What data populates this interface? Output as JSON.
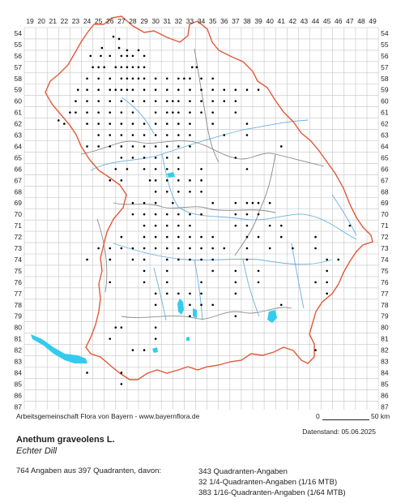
{
  "grid": {
    "x_labels": [
      "19",
      "20",
      "21",
      "22",
      "23",
      "24",
      "25",
      "26",
      "27",
      "28",
      "29",
      "30",
      "31",
      "32",
      "33",
      "34",
      "35",
      "36",
      "37",
      "38",
      "39",
      "40",
      "41",
      "42",
      "43",
      "44",
      "45",
      "46",
      "47",
      "48",
      "49"
    ],
    "y_labels": [
      "54",
      "55",
      "56",
      "57",
      "58",
      "59",
      "60",
      "61",
      "62",
      "63",
      "64",
      "65",
      "66",
      "67",
      "68",
      "69",
      "70",
      "71",
      "72",
      "73",
      "74",
      "75",
      "76",
      "77",
      "78",
      "79",
      "80",
      "81",
      "82",
      "83",
      "84",
      "85",
      "86",
      "87"
    ]
  },
  "colors": {
    "grid": "#bbbbbb",
    "border": "#e05a3a",
    "districts": "#888888",
    "rivers": "#6ab0e0",
    "lakes": "#33ccee",
    "dots": "#000000"
  },
  "occurrences": [
    [
      26.3,
      54.3
    ],
    [
      26.8,
      54.5
    ],
    [
      25.3,
      55.3
    ],
    [
      26.8,
      55.3
    ],
    [
      27.5,
      55.5
    ],
    [
      28.5,
      55.5
    ],
    [
      24.3,
      56.0
    ],
    [
      25.2,
      56.0
    ],
    [
      26.0,
      56.0
    ],
    [
      27.0,
      56.0
    ],
    [
      27.5,
      56.0
    ],
    [
      28.0,
      56.0
    ],
    [
      29.0,
      56.0
    ],
    [
      24.5,
      57.0
    ],
    [
      25.0,
      57.0
    ],
    [
      25.5,
      57.0
    ],
    [
      26.5,
      57.0
    ],
    [
      27.0,
      57.0
    ],
    [
      27.5,
      57.0
    ],
    [
      28.0,
      57.0
    ],
    [
      28.5,
      57.0
    ],
    [
      29.0,
      57.0
    ],
    [
      33.2,
      57.0
    ],
    [
      33.6,
      57.0
    ],
    [
      24.0,
      58.0
    ],
    [
      25.0,
      58.0
    ],
    [
      26.0,
      58.0
    ],
    [
      27.0,
      58.0
    ],
    [
      27.5,
      58.0
    ],
    [
      28.0,
      58.0
    ],
    [
      28.5,
      58.0
    ],
    [
      29.0,
      58.0
    ],
    [
      30.0,
      58.0
    ],
    [
      31.0,
      58.0
    ],
    [
      32.0,
      58.0
    ],
    [
      32.5,
      58.0
    ],
    [
      33.0,
      58.0
    ],
    [
      34.0,
      58.0
    ],
    [
      35.0,
      58.0
    ],
    [
      23.2,
      59.0
    ],
    [
      24.0,
      59.0
    ],
    [
      25.0,
      59.0
    ],
    [
      26.0,
      59.0
    ],
    [
      26.5,
      59.0
    ],
    [
      27.0,
      59.0
    ],
    [
      27.5,
      59.0
    ],
    [
      28.0,
      59.0
    ],
    [
      29.0,
      59.0
    ],
    [
      30.0,
      59.0
    ],
    [
      31.0,
      59.0
    ],
    [
      32.0,
      59.0
    ],
    [
      33.0,
      59.0
    ],
    [
      34.0,
      59.0
    ],
    [
      35.0,
      59.0
    ],
    [
      36.0,
      59.0
    ],
    [
      37.0,
      59.0
    ],
    [
      38.0,
      59.0
    ],
    [
      39.0,
      59.0
    ],
    [
      23.0,
      60.0
    ],
    [
      24.0,
      60.0
    ],
    [
      25.0,
      60.0
    ],
    [
      26.0,
      60.0
    ],
    [
      27.0,
      60.0
    ],
    [
      28.0,
      60.0
    ],
    [
      29.0,
      60.0
    ],
    [
      30.0,
      60.0
    ],
    [
      31.0,
      60.0
    ],
    [
      31.5,
      60.0
    ],
    [
      32.0,
      60.0
    ],
    [
      33.0,
      60.0
    ],
    [
      34.0,
      60.0
    ],
    [
      35.0,
      60.0
    ],
    [
      36.0,
      60.0
    ],
    [
      37.0,
      60.0
    ],
    [
      22.5,
      61.0
    ],
    [
      23.0,
      61.0
    ],
    [
      24.0,
      61.0
    ],
    [
      25.0,
      61.0
    ],
    [
      26.0,
      61.0
    ],
    [
      27.0,
      61.0
    ],
    [
      28.0,
      61.0
    ],
    [
      30.0,
      61.0
    ],
    [
      31.0,
      61.0
    ],
    [
      31.5,
      61.0
    ],
    [
      32.0,
      61.0
    ],
    [
      33.0,
      61.0
    ],
    [
      34.0,
      61.0
    ],
    [
      35.0,
      61.0
    ],
    [
      37.0,
      61.0
    ],
    [
      21.5,
      61.7
    ],
    [
      22.0,
      62.0
    ],
    [
      24.0,
      62.0
    ],
    [
      25.0,
      62.0
    ],
    [
      26.0,
      62.0
    ],
    [
      27.0,
      62.0
    ],
    [
      28.0,
      62.0
    ],
    [
      29.0,
      62.0
    ],
    [
      30.0,
      62.0
    ],
    [
      31.0,
      62.0
    ],
    [
      32.0,
      62.0
    ],
    [
      33.0,
      62.0
    ],
    [
      35.0,
      62.0
    ],
    [
      38.0,
      62.0
    ],
    [
      25.0,
      63.0
    ],
    [
      26.0,
      63.0
    ],
    [
      27.0,
      63.0
    ],
    [
      28.0,
      63.0
    ],
    [
      29.0,
      63.0
    ],
    [
      30.0,
      63.0
    ],
    [
      31.0,
      63.0
    ],
    [
      32.0,
      63.0
    ],
    [
      33.0,
      63.0
    ],
    [
      36.0,
      63.0
    ],
    [
      38.0,
      63.0
    ],
    [
      24.0,
      64.0
    ],
    [
      25.0,
      64.0
    ],
    [
      26.0,
      64.0
    ],
    [
      27.0,
      64.0
    ],
    [
      28.0,
      64.0
    ],
    [
      29.0,
      64.0
    ],
    [
      30.0,
      64.0
    ],
    [
      31.0,
      64.0
    ],
    [
      32.0,
      64.0
    ],
    [
      33.0,
      64.0
    ],
    [
      41.0,
      64.0
    ],
    [
      27.0,
      65.0
    ],
    [
      28.0,
      65.0
    ],
    [
      29.0,
      65.0
    ],
    [
      30.0,
      65.0
    ],
    [
      31.0,
      65.0
    ],
    [
      32.0,
      65.0
    ],
    [
      37.0,
      65.0
    ],
    [
      26.5,
      66.0
    ],
    [
      27.5,
      66.0
    ],
    [
      29.0,
      66.0
    ],
    [
      30.0,
      66.0
    ],
    [
      31.0,
      66.0
    ],
    [
      32.0,
      66.0
    ],
    [
      34.0,
      66.0
    ],
    [
      38.0,
      66.0
    ],
    [
      26.0,
      67.0
    ],
    [
      27.0,
      67.0
    ],
    [
      29.5,
      67.0
    ],
    [
      30.0,
      67.0
    ],
    [
      31.0,
      67.0
    ],
    [
      32.0,
      67.0
    ],
    [
      33.0,
      67.0
    ],
    [
      34.0,
      67.0
    ],
    [
      30.0,
      68.0
    ],
    [
      31.0,
      68.0
    ],
    [
      32.0,
      68.0
    ],
    [
      33.0,
      68.0
    ],
    [
      34.0,
      68.0
    ],
    [
      28.0,
      69.0
    ],
    [
      29.0,
      69.0
    ],
    [
      30.0,
      69.0
    ],
    [
      31.5,
      69.0
    ],
    [
      35.0,
      69.0
    ],
    [
      37.0,
      69.0
    ],
    [
      38.0,
      69.0
    ],
    [
      38.5,
      69.0
    ],
    [
      39.0,
      69.0
    ],
    [
      40.0,
      69.0
    ],
    [
      28.0,
      70.0
    ],
    [
      29.0,
      70.0
    ],
    [
      30.0,
      70.0
    ],
    [
      31.0,
      70.0
    ],
    [
      32.0,
      70.0
    ],
    [
      33.0,
      70.0
    ],
    [
      34.0,
      70.0
    ],
    [
      37.0,
      70.0
    ],
    [
      38.0,
      70.0
    ],
    [
      39.0,
      70.0
    ],
    [
      29.0,
      71.0
    ],
    [
      30.0,
      71.0
    ],
    [
      31.0,
      71.0
    ],
    [
      32.0,
      71.0
    ],
    [
      33.0,
      71.0
    ],
    [
      37.0,
      71.0
    ],
    [
      38.0,
      71.0
    ],
    [
      40.0,
      71.0
    ],
    [
      41.0,
      71.0
    ],
    [
      47.0,
      71.0
    ],
    [
      27.0,
      72.0
    ],
    [
      29.0,
      72.0
    ],
    [
      30.0,
      72.0
    ],
    [
      31.0,
      72.0
    ],
    [
      32.0,
      72.0
    ],
    [
      33.0,
      72.0
    ],
    [
      34.0,
      72.0
    ],
    [
      35.0,
      72.0
    ],
    [
      38.0,
      72.0
    ],
    [
      39.0,
      72.0
    ],
    [
      41.0,
      72.0
    ],
    [
      44.0,
      72.0
    ],
    [
      25.0,
      73.0
    ],
    [
      26.0,
      73.0
    ],
    [
      27.0,
      73.0
    ],
    [
      28.0,
      73.0
    ],
    [
      29.0,
      73.0
    ],
    [
      30.0,
      73.0
    ],
    [
      31.0,
      73.0
    ],
    [
      32.0,
      73.0
    ],
    [
      33.0,
      73.0
    ],
    [
      34.0,
      73.0
    ],
    [
      35.0,
      73.0
    ],
    [
      36.0,
      73.0
    ],
    [
      38.0,
      73.0
    ],
    [
      40.0,
      73.0
    ],
    [
      42.0,
      73.0
    ],
    [
      44.0,
      73.0
    ],
    [
      24.0,
      74.0
    ],
    [
      26.0,
      74.0
    ],
    [
      28.0,
      74.0
    ],
    [
      29.0,
      74.0
    ],
    [
      31.0,
      74.0
    ],
    [
      32.0,
      74.0
    ],
    [
      33.0,
      74.0
    ],
    [
      34.0,
      74.0
    ],
    [
      35.0,
      74.0
    ],
    [
      38.0,
      74.0
    ],
    [
      45.0,
      74.0
    ],
    [
      46.0,
      74.0
    ],
    [
      29.0,
      75.0
    ],
    [
      31.0,
      75.0
    ],
    [
      35.0,
      75.0
    ],
    [
      37.0,
      75.0
    ],
    [
      39.0,
      75.0
    ],
    [
      45.0,
      75.0
    ],
    [
      26.0,
      76.0
    ],
    [
      29.0,
      76.0
    ],
    [
      31.0,
      76.0
    ],
    [
      34.0,
      76.0
    ],
    [
      37.0,
      76.0
    ],
    [
      39.0,
      76.0
    ],
    [
      44.0,
      76.0
    ],
    [
      45.0,
      76.0
    ],
    [
      30.0,
      77.0
    ],
    [
      31.0,
      77.0
    ],
    [
      32.0,
      77.0
    ],
    [
      33.0,
      77.0
    ],
    [
      34.0,
      77.0
    ],
    [
      37.0,
      77.0
    ],
    [
      45.0,
      77.0
    ],
    [
      30.0,
      78.0
    ],
    [
      33.0,
      78.0
    ],
    [
      34.0,
      78.0
    ],
    [
      35.0,
      78.0
    ],
    [
      41.0,
      78.0
    ],
    [
      33.0,
      79.0
    ],
    [
      37.0,
      79.0
    ],
    [
      26.5,
      80.0
    ],
    [
      27.0,
      80.0
    ],
    [
      30.0,
      80.0
    ],
    [
      26.0,
      81.0
    ],
    [
      30.0,
      81.0
    ],
    [
      28.0,
      82.0
    ],
    [
      29.0,
      82.0
    ],
    [
      44.0,
      82.0
    ],
    [
      24.0,
      84.0
    ],
    [
      27.0,
      84.0
    ],
    [
      27.0,
      85.0
    ]
  ],
  "footer": {
    "attribution": "Arbeitsgemeinschaft Flora von Bayern - www.bayernflora.de",
    "scale_zero": "0",
    "scale_end": "50 km",
    "date": "Datenstand: 05.06.2025",
    "species": "Anethum graveolens L.",
    "common_name": "Echter Dill",
    "summary": "764 Angaben aus 397 Quadranten, davon:",
    "line1": "343 Quadranten-Angaben",
    "line2": "32 1/4-Quadranten-Angaben (1/16 MTB)",
    "line3": "383 1/16-Quadranten-Angaben (1/64 MTB)"
  }
}
